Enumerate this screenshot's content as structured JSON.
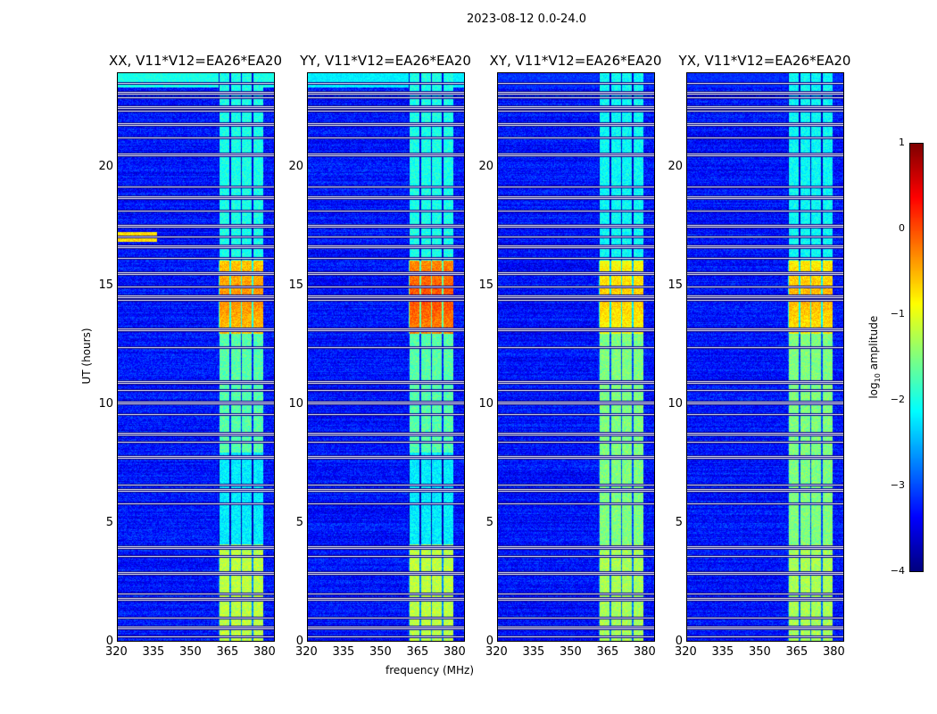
{
  "suptitle": "2023-08-12 0.0-24.0",
  "chart_data": {
    "type": "heatmap",
    "panels": [
      {
        "title": "XX, V11*V12=EA26*EA20",
        "band_level": -1.4,
        "peak_level": -0.3,
        "top_band": -2.0
      },
      {
        "title": "YY, V11*V12=EA26*EA20",
        "band_level": -1.4,
        "peak_level": 0.0,
        "top_band": -2.2
      },
      {
        "title": "XY, V11*V12=EA26*EA20",
        "band_level": -1.5,
        "peak_level": -0.6,
        "top_band": -3.2
      },
      {
        "title": "YX, V11*V12=EA26*EA20",
        "band_level": -1.5,
        "peak_level": -0.5,
        "top_band": -3.2
      }
    ],
    "xlabel": "frequency (MHz)",
    "ylabel": "UT (hours)",
    "xlim": [
      320,
      384
    ],
    "ylim": [
      0,
      24
    ],
    "xticks": [
      "320",
      "335",
      "350",
      "365",
      "380"
    ],
    "yticks": [
      "0",
      "5",
      "10",
      "15",
      "20"
    ],
    "background_level": -3.3,
    "rfi_band_mhz": [
      361,
      379.5
    ],
    "flagged_hours": [
      23.6,
      23.2,
      23.0,
      22.6,
      22.4,
      21.9,
      21.3,
      20.6,
      19.2,
      18.8,
      18.2,
      17.6,
      17.1,
      16.7,
      16.2,
      15.6,
      15.0,
      14.6,
      14.4,
      13.2,
      12.4,
      11.0,
      10.6,
      10.1,
      9.6,
      8.8,
      8.4,
      7.8,
      6.6,
      6.4,
      5.8,
      4.0,
      3.6,
      2.9,
      2.0,
      1.8,
      1.0,
      0.6,
      0.2
    ],
    "colorbar": {
      "label": "log10 amplitude",
      "min": -4,
      "max": 1,
      "ticks": [
        "1",
        "0",
        "−1",
        "−2",
        "−3",
        "−4"
      ],
      "colormap": "jet"
    }
  }
}
